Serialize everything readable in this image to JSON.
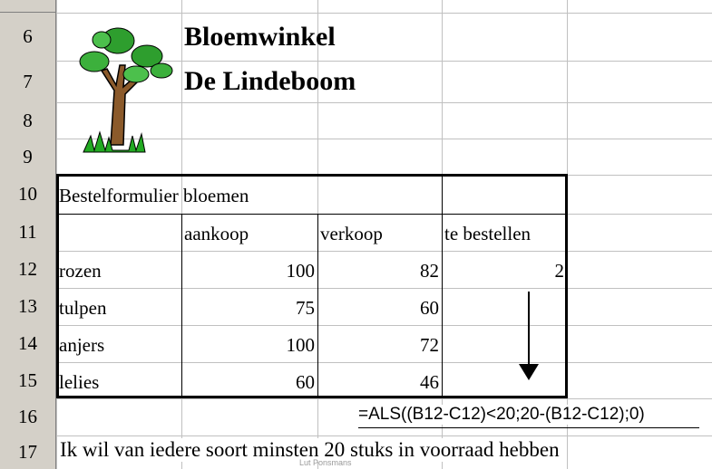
{
  "row_headers": [
    6,
    7,
    8,
    9,
    10,
    11,
    12,
    13,
    14,
    15,
    16,
    17
  ],
  "title": [
    "Bloemwinkel",
    "De Lindeboom"
  ],
  "table": {
    "caption": "Bestelformulier bloemen",
    "header": [
      "aankoop",
      "verkoop",
      "te bestellen"
    ],
    "rows": [
      [
        "rozen",
        100,
        82,
        2
      ],
      [
        "tulpen",
        75,
        60
      ],
      [
        "anjers",
        100,
        72
      ],
      [
        "lelies",
        60,
        46
      ]
    ]
  },
  "formula": "=ALS((B12-C12)<20;20-(B12-C12);0)",
  "note": "Ik wil van iedere soort minsten 20 stuks in voorraad hebben",
  "watermark": "Lut Ponsmans"
}
